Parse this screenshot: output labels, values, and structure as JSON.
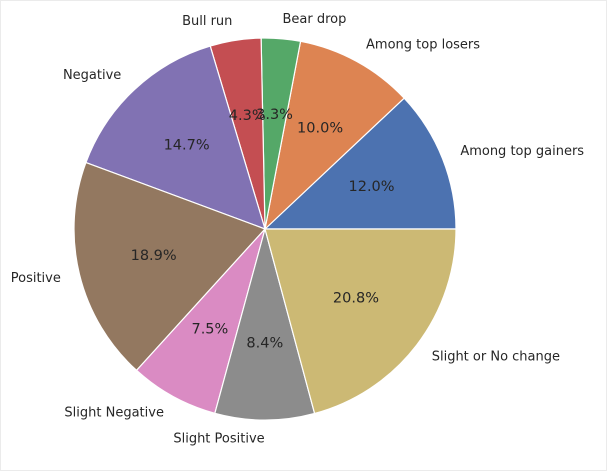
{
  "chart_data": {
    "type": "pie",
    "categories": [
      "Among top gainers",
      "Among top losers",
      "Bear drop",
      "Bull run",
      "Negative",
      "Positive",
      "Slight Negative",
      "Slight Positive",
      "Slight or No change"
    ],
    "values": [
      12.0,
      10.0,
      3.3,
      4.3,
      14.7,
      18.9,
      7.5,
      8.4,
      20.8
    ],
    "value_labels": [
      "12.0%",
      "10.0%",
      "3.3%",
      "4.3%",
      "14.7%",
      "18.9%",
      "7.5%",
      "8.4%",
      "20.8%"
    ],
    "colors": [
      "#4c72b0",
      "#dd8452",
      "#55a868",
      "#c44e52",
      "#8172b3",
      "#937860",
      "#da8bc3",
      "#8c8c8c",
      "#ccb974"
    ],
    "start_angle_deg": 0,
    "direction": "counterclockwise",
    "title": "",
    "legend": "none"
  }
}
